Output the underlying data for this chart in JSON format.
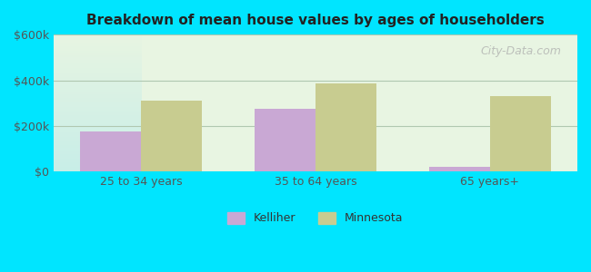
{
  "title": "Breakdown of mean house values by ages of householders",
  "categories": [
    "25 to 34 years",
    "35 to 64 years",
    "65 years+"
  ],
  "kelliher_values": [
    175000,
    275000,
    20000
  ],
  "minnesota_values": [
    310000,
    385000,
    330000
  ],
  "bar_color_kelliher": "#c9a8d4",
  "bar_color_minnesota": "#c8cc90",
  "ylim": [
    0,
    600000
  ],
  "yticks": [
    0,
    200000,
    400000,
    600000
  ],
  "ytick_labels": [
    "$0",
    "$200k",
    "$400k",
    "$600k"
  ],
  "background_outer": "#00e5ff",
  "background_inner_top": "#e8f5e2",
  "background_inner_bottom": "#c8eee8",
  "grid_color": "#b0c8b0",
  "watermark": "City-Data.com",
  "legend_labels": [
    "Kelliher",
    "Minnesota"
  ],
  "bar_width": 0.35,
  "group_positions": [
    1,
    2,
    3
  ]
}
